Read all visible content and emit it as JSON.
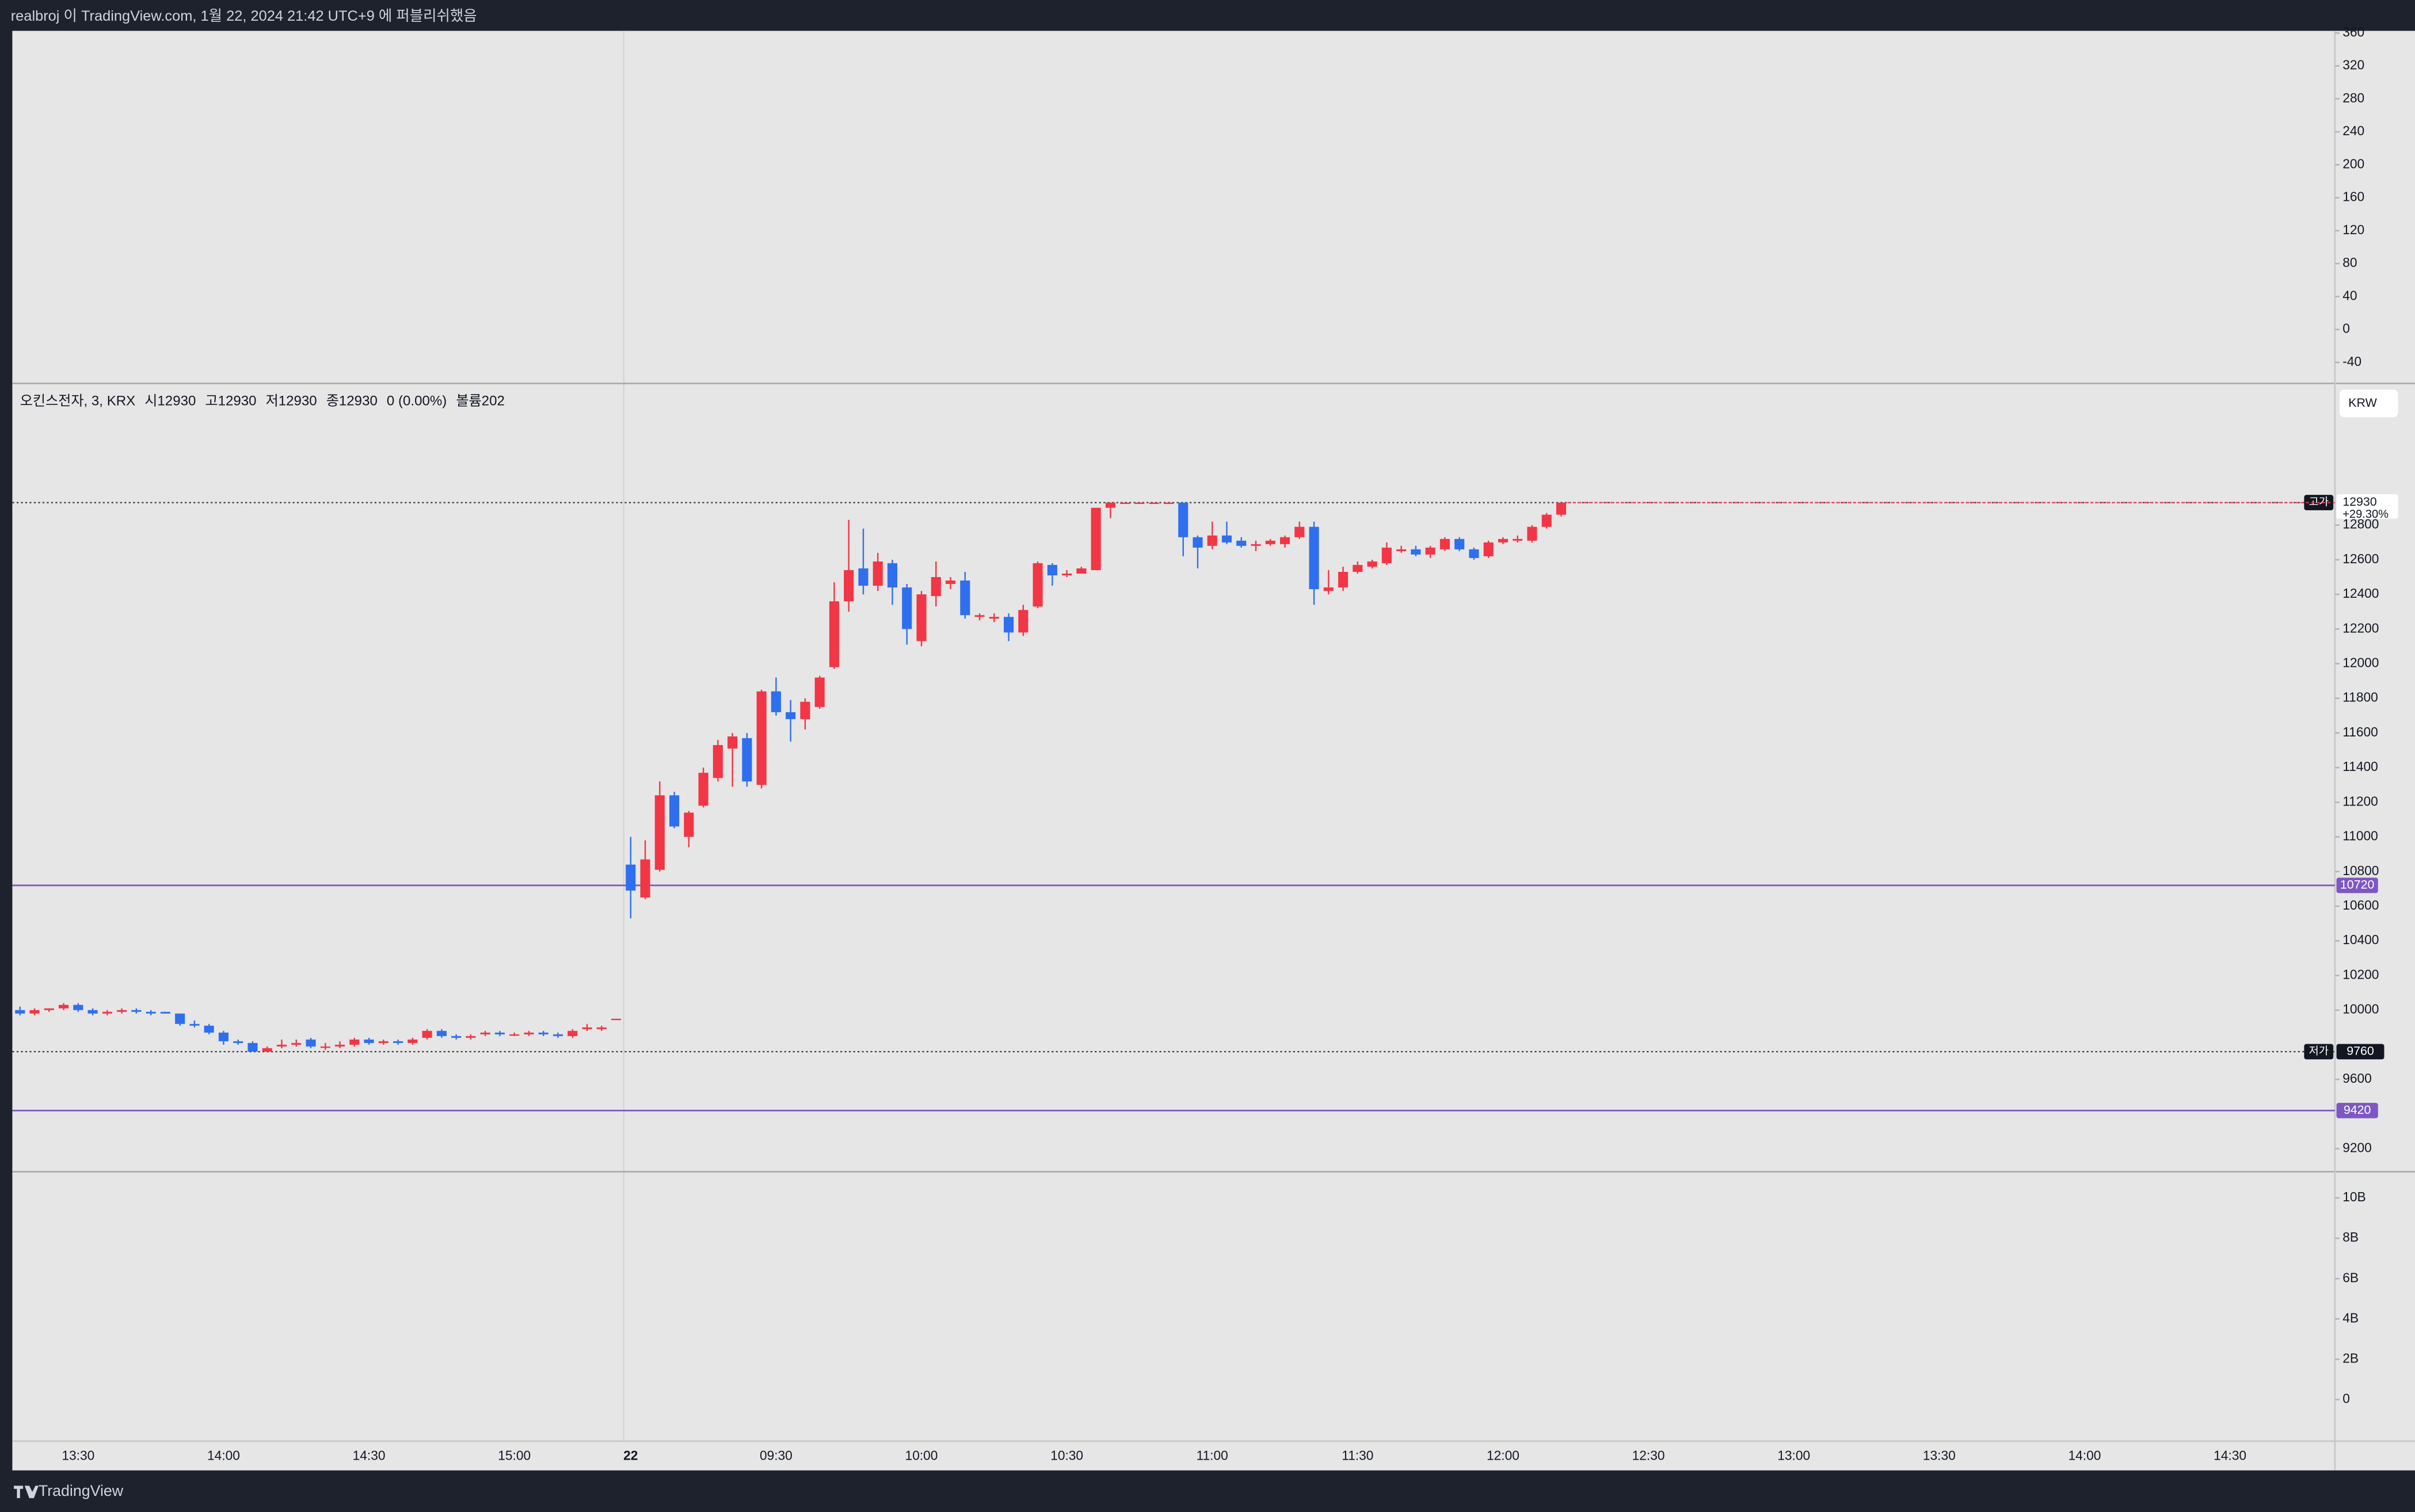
{
  "header": {
    "title": "realbroj 이 TradingView.com, 1월 22, 2024 21:42 UTC+9 에 퍼블리쉬했음"
  },
  "footer": {
    "brand": "TradingView"
  },
  "top_pane": {
    "ylim": [
      -63.6,
      362.6
    ],
    "yticks": [
      360,
      320,
      280,
      240,
      200,
      160,
      120,
      80,
      40,
      0,
      -40
    ]
  },
  "volume_pane": {
    "ylim": [
      -2060000000,
      11300000000
    ],
    "yticks": [
      {
        "value": 10000000000,
        "label": "10B"
      },
      {
        "value": 8000000000,
        "label": "8B"
      },
      {
        "value": 6000000000,
        "label": "6B"
      },
      {
        "value": 4000000000,
        "label": "4B"
      },
      {
        "value": 2000000000,
        "label": "2B"
      },
      0
    ]
  },
  "chart_data": {
    "type": "candlestick",
    "legend": [
      "오킨스전자, 3, KRX",
      "시12930",
      "고12930",
      "저12930",
      "종12930",
      "0 (0.00%)",
      "볼륨202"
    ],
    "currency": "KRW",
    "up_color": "#f23645",
    "down_color": "#2f6fef",
    "ylim": [
      9067,
      13618
    ],
    "yticks": [
      9200,
      9600,
      10000,
      10200,
      10400,
      10600,
      10800,
      11000,
      11200,
      11400,
      11600,
      11800,
      12000,
      12200,
      12400,
      12600,
      12800
    ],
    "price_lines": [
      {
        "value": 10720,
        "color": "#7e57c2"
      },
      {
        "value": 9420,
        "color": "#7e57c2"
      }
    ],
    "high_line": {
      "label": "고가",
      "value": 12930
    },
    "low_line": {
      "label": "저가",
      "value": 9760
    },
    "last_price": {
      "value": 12930,
      "change": "+29.30%"
    },
    "categories": [
      null,
      null,
      null,
      null,
      "13:30",
      null,
      null,
      null,
      null,
      null,
      null,
      null,
      null,
      null,
      "14:00",
      null,
      null,
      null,
      null,
      null,
      null,
      null,
      null,
      null,
      "14:30",
      null,
      null,
      null,
      null,
      null,
      null,
      null,
      null,
      null,
      "15:00",
      null,
      null,
      null,
      null,
      null,
      null,
      null,
      "22",
      null,
      null,
      null,
      null,
      null,
      null,
      null,
      null,
      null,
      "09:30",
      null,
      null,
      null,
      null,
      null,
      null,
      null,
      null,
      null,
      "10:00",
      null,
      null,
      null,
      null,
      null,
      null,
      null,
      null,
      null,
      "10:30",
      null,
      null,
      null,
      null,
      null,
      null,
      null,
      null,
      null,
      "11:00",
      null,
      null,
      null,
      null,
      null,
      null,
      null,
      null,
      null,
      "11:30",
      null,
      null,
      null,
      null,
      null,
      null,
      null,
      null,
      null,
      "12:00",
      null,
      null,
      null,
      null,
      null,
      null,
      null,
      null,
      null,
      "12:30",
      null,
      null,
      null,
      null,
      null,
      null,
      null,
      null,
      null,
      "13:00",
      null,
      null,
      null,
      null,
      null,
      null,
      null,
      null,
      null,
      "13:30",
      null,
      null,
      null,
      null,
      null,
      null,
      null,
      null,
      null,
      "14:00",
      null,
      null,
      null,
      null,
      null,
      null,
      null,
      null,
      null,
      "14:30",
      null,
      null,
      null,
      null,
      null,
      null,
      null
    ],
    "open": [
      10000,
      9980,
      10000,
      10010,
      10030,
      10000,
      9980,
      9990,
      10000,
      9990,
      9990,
      9980,
      9920,
      9910,
      9870,
      9820,
      9810,
      9760,
      9790,
      9800,
      9830,
      9790,
      9790,
      9800,
      9830,
      9810,
      9820,
      9810,
      9840,
      9880,
      9850,
      9840,
      9860,
      9870,
      9860,
      9860,
      9870,
      9860,
      9850,
      9890,
      9890,
      9950,
      10840,
      10650,
      10810,
      11240,
      11000,
      11180,
      11340,
      11510,
      11570,
      11300,
      11840,
      11720,
      11680,
      11750,
      11980,
      12360,
      12550,
      12450,
      12580,
      12440,
      12130,
      12390,
      12460,
      12480,
      12270,
      12260,
      12270,
      12180,
      12330,
      12570,
      12510,
      12520,
      12540,
      12900,
      12930,
      12930,
      12930,
      12930,
      12930,
      12730,
      12680,
      12740,
      12710,
      12680,
      12690,
      12690,
      12730,
      12790,
      12420,
      12440,
      12530,
      12560,
      12580,
      12650,
      12660,
      12630,
      12660,
      12720,
      12660,
      12620,
      12700,
      12710,
      12710,
      12790,
      12860,
      null,
      null,
      null,
      null,
      null,
      null,
      null,
      null,
      null,
      null,
      null,
      null,
      null,
      null,
      null,
      null,
      null,
      null,
      null,
      null,
      null,
      null,
      null,
      null,
      null,
      null,
      null,
      null,
      null,
      null,
      null,
      null,
      null,
      null,
      null,
      null,
      null,
      null,
      null,
      null,
      null,
      null,
      null,
      null,
      null,
      null,
      null,
      null,
      null,
      null,
      null,
      null,
      null
    ],
    "high": [
      10020,
      10010,
      10010,
      10040,
      10040,
      10010,
      10000,
      10010,
      10010,
      10000,
      9990,
      9980,
      9940,
      9920,
      9880,
      9830,
      9820,
      9790,
      9830,
      9830,
      9840,
      9810,
      9820,
      9840,
      9840,
      9830,
      9830,
      9840,
      9890,
      9890,
      9860,
      9860,
      9880,
      9880,
      9870,
      9880,
      9880,
      9870,
      9890,
      9920,
      9910,
      9950,
      11000,
      10980,
      11320,
      11260,
      11150,
      11400,
      11560,
      11600,
      11600,
      11850,
      11920,
      11790,
      11800,
      11930,
      12470,
      12830,
      12780,
      12640,
      12600,
      12460,
      12420,
      12590,
      12500,
      12530,
      12290,
      12290,
      12290,
      12340,
      12590,
      12580,
      12540,
      12560,
      12900,
      12930,
      12930,
      12930,
      12930,
      12930,
      12930,
      12740,
      12820,
      12820,
      12730,
      12710,
      12720,
      12740,
      12820,
      12820,
      12540,
      12560,
      12590,
      12600,
      12700,
      12680,
      12680,
      12680,
      12730,
      12730,
      12670,
      12710,
      12730,
      12740,
      12800,
      12870,
      12930,
      null,
      null,
      null,
      null,
      null,
      null,
      null,
      null,
      null,
      null,
      null,
      null,
      null,
      null,
      null,
      null,
      null,
      null,
      null,
      null,
      null,
      null,
      null,
      null,
      null,
      null,
      null,
      null,
      null,
      null,
      null,
      null,
      null,
      null,
      null,
      null,
      null,
      null,
      null,
      null,
      null,
      null,
      null,
      null,
      null,
      null,
      null,
      null,
      null,
      null,
      null,
      null,
      null
    ],
    "low": [
      9970,
      9970,
      9990,
      10000,
      9990,
      9970,
      9970,
      9980,
      9980,
      9970,
      9980,
      9910,
      9900,
      9860,
      9800,
      9800,
      9760,
      9760,
      9780,
      9790,
      9780,
      9770,
      9780,
      9790,
      9800,
      9800,
      9800,
      9800,
      9830,
      9840,
      9830,
      9830,
      9850,
      9850,
      9850,
      9850,
      9850,
      9840,
      9840,
      9880,
      9880,
      9950,
      10530,
      10640,
      10800,
      11050,
      10940,
      11170,
      11320,
      11290,
      11290,
      11280,
      11700,
      11550,
      11620,
      11740,
      11970,
      12300,
      12400,
      12420,
      12340,
      12110,
      12100,
      12330,
      12430,
      12260,
      12250,
      12240,
      12130,
      12160,
      12320,
      12450,
      12500,
      12520,
      12540,
      12840,
      12930,
      12930,
      12930,
      12930,
      12620,
      12550,
      12660,
      12690,
      12670,
      12650,
      12680,
      12670,
      12720,
      12340,
      12400,
      12420,
      12520,
      12550,
      12570,
      12640,
      12620,
      12610,
      12650,
      12650,
      12600,
      12610,
      12690,
      12700,
      12700,
      12780,
      12850,
      null,
      null,
      null,
      null,
      null,
      null,
      null,
      null,
      null,
      null,
      null,
      null,
      null,
      null,
      null,
      null,
      null,
      null,
      null,
      null,
      null,
      null,
      null,
      null,
      null,
      null,
      null,
      null,
      null,
      null,
      null,
      null,
      null,
      null,
      null,
      null,
      null,
      null,
      null,
      null,
      null,
      null,
      null,
      null,
      null,
      null,
      null,
      null,
      null,
      null,
      null,
      null,
      null
    ],
    "close": [
      9980,
      10000,
      10010,
      10030,
      10000,
      9980,
      9990,
      10000,
      9990,
      9980,
      9980,
      9920,
      9910,
      9870,
      9820,
      9810,
      9760,
      9780,
      9800,
      9810,
      9790,
      9790,
      9800,
      9830,
      9810,
      9820,
      9810,
      9830,
      9880,
      9850,
      9840,
      9850,
      9870,
      9860,
      9860,
      9870,
      9860,
      9850,
      9880,
      9900,
      9900,
      9950,
      10690,
      10870,
      11240,
      11060,
      11140,
      11370,
      11530,
      11580,
      11320,
      11840,
      11720,
      11680,
      11780,
      11920,
      12360,
      12540,
      12450,
      12590,
      12440,
      12200,
      12400,
      12500,
      12480,
      12280,
      12280,
      12270,
      12180,
      12310,
      12580,
      12510,
      12520,
      12550,
      12900,
      12930,
      12930,
      12930,
      12930,
      12930,
      12730,
      12670,
      12740,
      12700,
      12680,
      12690,
      12710,
      12730,
      12790,
      12430,
      12440,
      12530,
      12570,
      12590,
      12670,
      12660,
      12630,
      12670,
      12720,
      12660,
      12610,
      12700,
      12720,
      12720,
      12790,
      12860,
      12930,
      null,
      null,
      null,
      null,
      null,
      null,
      null,
      null,
      null,
      null,
      null,
      null,
      null,
      null,
      null,
      null,
      null,
      null,
      null,
      null,
      null,
      null,
      null,
      null,
      null,
      null,
      null,
      null,
      null,
      null,
      null,
      null,
      null,
      null,
      null,
      null,
      null,
      null,
      null,
      null,
      null,
      null,
      null,
      null,
      null,
      null,
      null,
      null,
      null,
      null,
      null,
      null,
      null
    ]
  }
}
